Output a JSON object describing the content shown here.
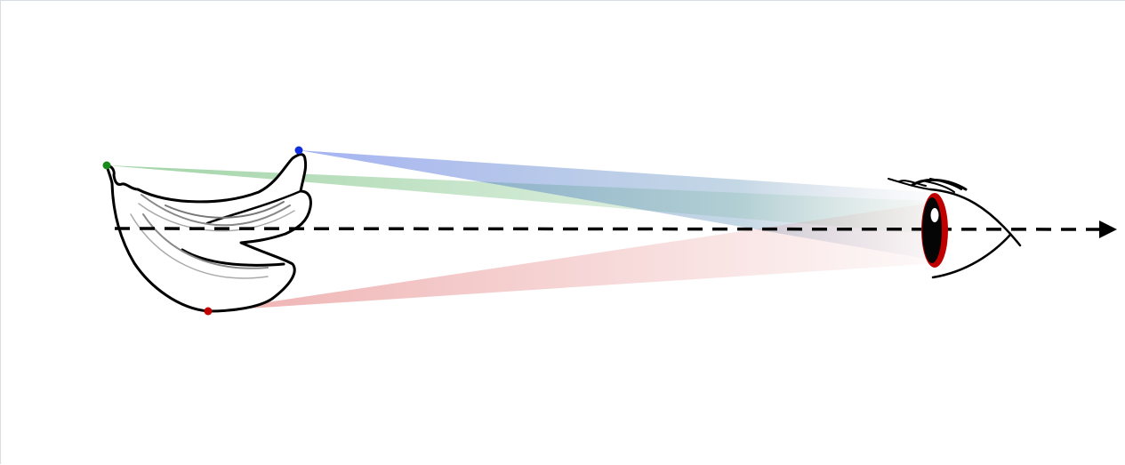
{
  "diagram": {
    "objects": [
      "banana-bunch",
      "eye",
      "optical-axis-arrow"
    ],
    "rays": [
      {
        "name": "green-ray",
        "color": "#2e9e3a"
      },
      {
        "name": "blue-ray",
        "color": "#1f3fe0"
      },
      {
        "name": "red-ray",
        "color": "#c01010"
      }
    ],
    "iris_color": "#c00000",
    "axis_color": "#000000"
  }
}
